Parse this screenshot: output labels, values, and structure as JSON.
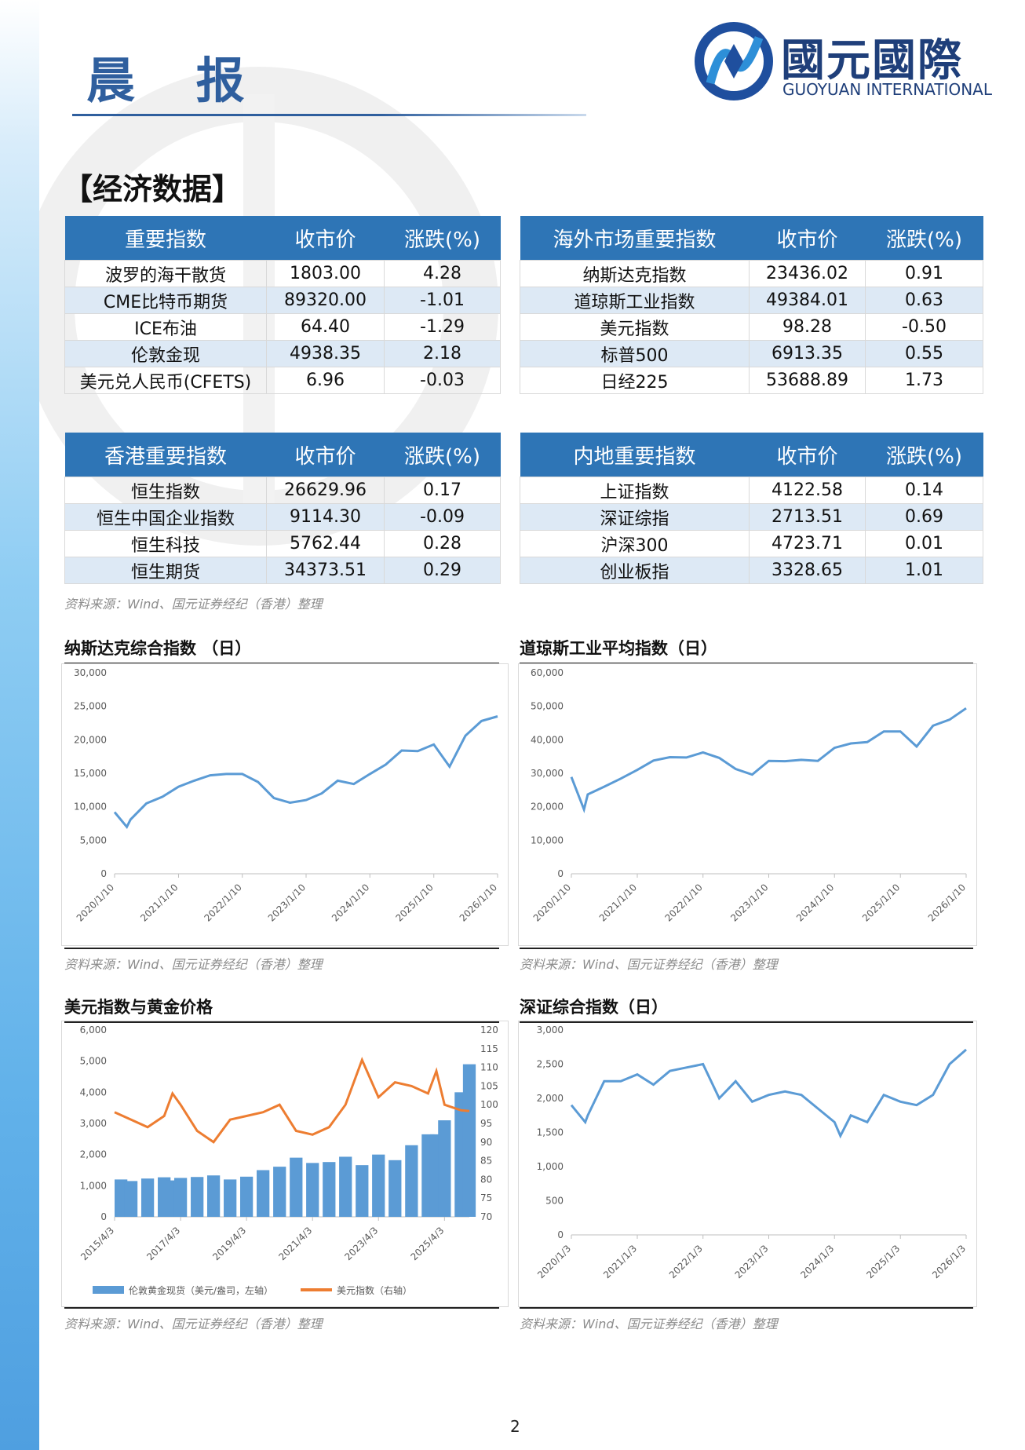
{
  "header": {
    "title": "晨 报",
    "logo_cn": "國元國際",
    "logo_en": "GUOYUAN INTERNATIONAL"
  },
  "section_title": "【经济数据】",
  "tables": [
    {
      "headers": [
        "重要指数",
        "收市价",
        "涨跌(%)"
      ],
      "rows": [
        [
          "波罗的海干散货",
          "1803.00",
          "4.28"
        ],
        [
          "CME比特币期货",
          "89320.00",
          "-1.01"
        ],
        [
          "ICE布油",
          "64.40",
          "-1.29"
        ],
        [
          "伦敦金现",
          "4938.35",
          "2.18"
        ],
        [
          "美元兑人民币(CFETS)",
          "6.96",
          "-0.03"
        ]
      ]
    },
    {
      "headers": [
        "海外市场重要指数",
        "收市价",
        "涨跌(%)"
      ],
      "rows": [
        [
          "纳斯达克指数",
          "23436.02",
          "0.91"
        ],
        [
          "道琼斯工业指数",
          "49384.01",
          "0.63"
        ],
        [
          "美元指数",
          "98.28",
          "-0.50"
        ],
        [
          "标普500",
          "6913.35",
          "0.55"
        ],
        [
          "日经225",
          "53688.89",
          "1.73"
        ]
      ]
    },
    {
      "headers": [
        "香港重要指数",
        "收市价",
        "涨跌(%)"
      ],
      "rows": [
        [
          "恒生指数",
          "26629.96",
          "0.17"
        ],
        [
          "恒生中国企业指数",
          "9114.30",
          "-0.09"
        ],
        [
          "恒生科技",
          "5762.44",
          "0.28"
        ],
        [
          "恒生期货",
          "34373.51",
          "0.29"
        ]
      ]
    },
    {
      "headers": [
        "内地重要指数",
        "收市价",
        "涨跌(%)"
      ],
      "rows": [
        [
          "上证指数",
          "4122.58",
          "0.14"
        ],
        [
          "深证综指",
          "2713.51",
          "0.69"
        ],
        [
          "沪深300",
          "4723.71",
          "0.01"
        ],
        [
          "创业板指",
          "3328.65",
          "1.01"
        ]
      ]
    }
  ],
  "table_source": "资料来源：Wind、国元证券经纪（香港）整理",
  "chart_data": [
    {
      "type": "line",
      "title": "纳斯达克综合指数 （日）",
      "color": "#5b9bd5",
      "x": [
        "2020/1/10",
        "2020/3/20",
        "2020/4/10",
        "2020/7/10",
        "2020/10/10",
        "2021/1/10",
        "2021/4/10",
        "2021/7/10",
        "2021/10/10",
        "2022/1/10",
        "2022/4/10",
        "2022/7/10",
        "2022/10/10",
        "2023/1/10",
        "2023/4/10",
        "2023/7/10",
        "2023/10/10",
        "2024/1/10",
        "2024/4/10",
        "2024/7/10",
        "2024/10/10",
        "2025/1/10",
        "2025/4/10",
        "2025/7/10",
        "2025/10/10",
        "2026/1/10"
      ],
      "values": [
        9200,
        7000,
        8100,
        10500,
        11500,
        13000,
        13900,
        14700,
        14900,
        14900,
        13700,
        11300,
        10600,
        11000,
        12000,
        13900,
        13400,
        14900,
        16300,
        18400,
        18300,
        19300,
        16000,
        20600,
        22800,
        23500
      ],
      "xlim": [
        "2020/1/10",
        "2026/1/10"
      ],
      "xticks": [
        "2020/1/10",
        "2021/1/10",
        "2022/1/10",
        "2023/1/10",
        "2024/1/10",
        "2025/1/10",
        "2026/1/10"
      ],
      "ylim": [
        0,
        30000
      ],
      "yticks": [
        0,
        {
          "value": 5000,
          "label": "5,000"
        },
        {
          "value": 10000,
          "label": "10,000"
        },
        {
          "value": 15000,
          "label": "15,000"
        },
        {
          "value": 20000,
          "label": "20,000"
        },
        {
          "value": 25000,
          "label": "25,000"
        },
        {
          "value": 30000,
          "label": "30,000"
        }
      ]
    },
    {
      "type": "line",
      "title": "道琼斯工业平均指数（日）",
      "color": "#5b9bd5",
      "x": [
        "2020/1/10",
        "2020/3/20",
        "2020/4/10",
        "2020/7/10",
        "2020/10/10",
        "2021/1/10",
        "2021/4/10",
        "2021/7/10",
        "2021/10/10",
        "2022/1/10",
        "2022/4/10",
        "2022/7/10",
        "2022/10/10",
        "2023/1/10",
        "2023/4/10",
        "2023/7/10",
        "2023/10/10",
        "2024/1/10",
        "2024/4/10",
        "2024/7/10",
        "2024/10/10",
        "2025/1/10",
        "2025/4/10",
        "2025/7/10",
        "2025/10/10",
        "2026/1/10"
      ],
      "values": [
        28900,
        19200,
        23700,
        26000,
        28400,
        31000,
        33800,
        34800,
        34700,
        36200,
        34600,
        31300,
        29600,
        33700,
        33600,
        34000,
        33700,
        37600,
        38900,
        39300,
        42500,
        42500,
        38000,
        44200,
        46000,
        49400
      ],
      "xlim": [
        "2020/1/10",
        "2026/1/10"
      ],
      "xticks": [
        "2020/1/10",
        "2021/1/10",
        "2022/1/10",
        "2023/1/10",
        "2024/1/10",
        "2025/1/10",
        "2026/1/10"
      ],
      "ylim": [
        0,
        60000
      ],
      "yticks": [
        0,
        {
          "value": 10000,
          "label": "10,000"
        },
        {
          "value": 20000,
          "label": "20,000"
        },
        {
          "value": 30000,
          "label": "30,000"
        },
        {
          "value": 40000,
          "label": "40,000"
        },
        {
          "value": 50000,
          "label": "50,000"
        },
        {
          "value": 60000,
          "label": "60,000"
        }
      ]
    },
    {
      "type": "combo",
      "title": "美元指数与黄金价格",
      "x": [
        "2015/4/3",
        "2015/10/3",
        "2016/4/3",
        "2016/10/3",
        "2017/1/3",
        "2017/4/3",
        "2017/10/3",
        "2018/4/3",
        "2018/10/3",
        "2019/4/3",
        "2019/10/3",
        "2020/4/3",
        "2020/10/3",
        "2021/4/3",
        "2021/10/3",
        "2022/4/3",
        "2022/10/3",
        "2023/4/3",
        "2023/10/3",
        "2024/4/3",
        "2024/10/3",
        "2025/1/3",
        "2025/4/3",
        "2025/10/3",
        "2026/1/3"
      ],
      "series": [
        {
          "name": "伦敦黄金现货（美元/盎司，左轴）",
          "color": "#5b9bd5",
          "values": [
            1200,
            1150,
            1230,
            1270,
            1170,
            1250,
            1280,
            1330,
            1200,
            1290,
            1500,
            1610,
            1900,
            1730,
            1760,
            1930,
            1660,
            2000,
            1820,
            2300,
            2650,
            2650,
            3100,
            4000,
            4900
          ]
        },
        {
          "name": "美元指数（右轴）",
          "color": "#ed7d31",
          "axis": "y2",
          "values": [
            98,
            96,
            94,
            97,
            103,
            100,
            93,
            90,
            96,
            97,
            98,
            100,
            93,
            92,
            94,
            100,
            112,
            102,
            106,
            105,
            103,
            109,
            100,
            98.5,
            98.3
          ]
        }
      ],
      "xlim": [
        "2015/4/3",
        "2026/1/3"
      ],
      "xticks": [
        "2015/4/3",
        "2017/4/3",
        "2019/4/3",
        "2021/4/3",
        "2023/4/3",
        "2025/4/3"
      ],
      "ylim": [
        0,
        6000
      ],
      "yticks": [
        0,
        {
          "value": 1000,
          "label": "1,000"
        },
        {
          "value": 2000,
          "label": "2,000"
        },
        {
          "value": 3000,
          "label": "3,000"
        },
        {
          "value": 4000,
          "label": "4,000"
        },
        {
          "value": 5000,
          "label": "5,000"
        },
        {
          "value": 6000,
          "label": "6,000"
        }
      ],
      "y2lim": [
        70,
        120
      ],
      "y2ticks": [
        70,
        75,
        80,
        85,
        90,
        95,
        100,
        105,
        110,
        115,
        120
      ]
    },
    {
      "type": "line",
      "title": "深证综合指数（日）",
      "color": "#5b9bd5",
      "x": [
        "2020/1/3",
        "2020/3/20",
        "2020/4/3",
        "2020/7/3",
        "2020/10/3",
        "2021/1/3",
        "2021/4/3",
        "2021/7/3",
        "2021/10/3",
        "2022/1/3",
        "2022/4/3",
        "2022/7/3",
        "2022/10/3",
        "2023/1/3",
        "2023/4/3",
        "2023/7/3",
        "2023/10/3",
        "2024/1/3",
        "2024/2/5",
        "2024/4/3",
        "2024/7/3",
        "2024/10/3",
        "2025/1/3",
        "2025/4/3",
        "2025/7/3",
        "2025/10/3",
        "2026/1/3"
      ],
      "values": [
        1900,
        1650,
        1750,
        2250,
        2250,
        2350,
        2200,
        2400,
        2450,
        2500,
        2000,
        2250,
        1950,
        2050,
        2100,
        2050,
        1850,
        1650,
        1450,
        1750,
        1650,
        2050,
        1950,
        1900,
        2050,
        2500,
        2713
      ],
      "xlim": [
        "2020/1/3",
        "2026/1/3"
      ],
      "xticks": [
        "2020/1/3",
        "2021/1/3",
        "2022/1/3",
        "2023/1/3",
        "2024/1/3",
        "2025/1/3",
        "2026/1/3"
      ],
      "ylim": [
        0,
        3000
      ],
      "yticks": [
        0,
        500,
        {
          "value": 1000,
          "label": "1,000"
        },
        {
          "value": 1500,
          "label": "1,500"
        },
        {
          "value": 2000,
          "label": "2,000"
        },
        {
          "value": 2500,
          "label": "2,500"
        },
        {
          "value": 3000,
          "label": "3,000"
        }
      ]
    }
  ],
  "chart_sources": [
    "资料来源：Wind、国元证券经纪（香港）整理",
    "资料来源：Wind、国元证券经纪（香港）整理",
    "资料来源：Wind、国元证券经纪（香港）整理",
    "资料来源：Wind、国元证券经纪（香港）整理"
  ],
  "page_number": "2"
}
